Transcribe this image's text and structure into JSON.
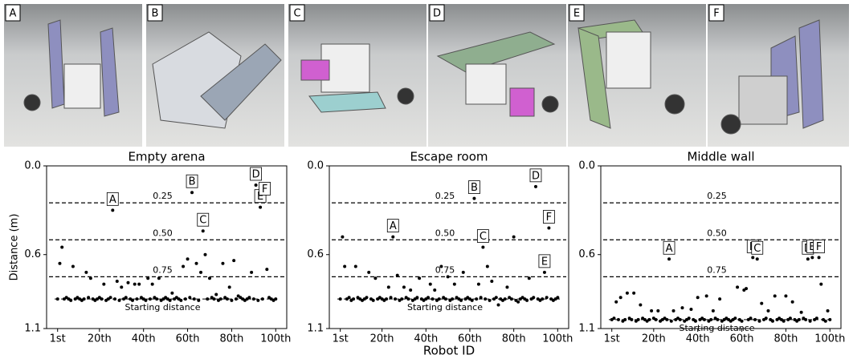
{
  "panels": [
    {
      "label": "A"
    },
    {
      "label": "B"
    },
    {
      "label": "C"
    },
    {
      "label": "D"
    },
    {
      "label": "E"
    },
    {
      "label": "F"
    }
  ],
  "chart_data": [
    {
      "type": "scatter",
      "title": "Empty arena",
      "ylabel": "Distance (m)",
      "color": "#000000",
      "x": [
        1,
        2,
        3,
        4,
        5,
        6,
        7,
        8,
        9,
        10,
        11,
        12,
        13,
        14,
        15,
        16,
        17,
        18,
        19,
        20,
        21,
        22,
        23,
        24,
        25,
        26,
        27,
        28,
        29,
        30,
        31,
        32,
        33,
        34,
        35,
        36,
        37,
        38,
        39,
        40,
        41,
        42,
        43,
        44,
        45,
        46,
        47,
        48,
        49,
        50,
        51,
        52,
        53,
        54,
        55,
        56,
        57,
        58,
        59,
        60,
        61,
        62,
        63,
        64,
        65,
        66,
        67,
        68,
        69,
        70,
        71,
        72,
        73,
        74,
        75,
        76,
        77,
        78,
        79,
        80,
        81,
        82,
        83,
        84,
        85,
        86,
        87,
        88,
        89,
        90,
        91,
        92,
        93,
        94,
        95,
        96,
        97,
        98,
        99,
        100
      ],
      "values": [
        0.9,
        0.66,
        0.55,
        0.9,
        0.89,
        0.9,
        0.91,
        0.68,
        0.9,
        0.89,
        0.9,
        0.91,
        0.9,
        0.72,
        0.89,
        0.76,
        0.9,
        0.91,
        0.9,
        0.89,
        0.9,
        0.8,
        0.91,
        0.9,
        0.89,
        0.3,
        0.9,
        0.78,
        0.91,
        0.82,
        0.9,
        0.89,
        0.79,
        0.9,
        0.91,
        0.8,
        0.9,
        0.8,
        0.89,
        0.9,
        0.91,
        0.76,
        0.9,
        0.8,
        0.89,
        0.9,
        0.76,
        0.91,
        0.9,
        0.89,
        0.9,
        0.91,
        0.86,
        0.9,
        0.89,
        0.9,
        0.91,
        0.68,
        0.9,
        0.63,
        0.89,
        0.18,
        0.9,
        0.66,
        0.91,
        0.72,
        0.44,
        0.6,
        0.9,
        0.76,
        0.89,
        0.9,
        0.87,
        0.91,
        0.9,
        0.66,
        0.89,
        0.9,
        0.82,
        0.91,
        0.64,
        0.9,
        0.88,
        0.89,
        0.9,
        0.91,
        0.9,
        0.89,
        0.72,
        0.9,
        0.13,
        0.91,
        0.28,
        0.9,
        0.23,
        0.7,
        0.89,
        0.9,
        0.91,
        0.9
      ],
      "xlim": [
        -4,
        105
      ],
      "ylim": [
        1.1,
        0
      ],
      "xticks": [
        {
          "value": 1,
          "label": "1st"
        },
        {
          "value": 20,
          "label": "20th"
        },
        {
          "value": 40,
          "label": "40th"
        },
        {
          "value": 60,
          "label": "60th"
        },
        {
          "value": 80,
          "label": "80th"
        },
        {
          "value": 100,
          "label": "100th"
        }
      ],
      "yticks": [
        {
          "value": 0,
          "label": "0.0"
        },
        0.6,
        1.1
      ],
      "hlines": [
        {
          "value": 0.25,
          "label": "0.25"
        },
        {
          "value": 0.5,
          "label": "0.50"
        },
        {
          "value": 0.75,
          "label": "0.75"
        }
      ],
      "baseline": {
        "value": 0.9,
        "label": "Starting distance"
      },
      "annotations": [
        {
          "text": "A",
          "x": 26
        },
        {
          "text": "B",
          "x": 62
        },
        {
          "text": "C",
          "x": 67
        },
        {
          "text": "D",
          "x": 91
        },
        {
          "text": "E",
          "x": 93
        },
        {
          "text": "F",
          "x": 95
        }
      ]
    },
    {
      "type": "scatter",
      "title": "Escape room",
      "xlabel": "Robot ID",
      "color": "#000000",
      "x": [
        1,
        2,
        3,
        4,
        5,
        6,
        7,
        8,
        9,
        10,
        11,
        12,
        13,
        14,
        15,
        16,
        17,
        18,
        19,
        20,
        21,
        22,
        23,
        24,
        25,
        26,
        27,
        28,
        29,
        30,
        31,
        32,
        33,
        34,
        35,
        36,
        37,
        38,
        39,
        40,
        41,
        42,
        43,
        44,
        45,
        46,
        47,
        48,
        49,
        50,
        51,
        52,
        53,
        54,
        55,
        56,
        57,
        58,
        59,
        60,
        61,
        62,
        63,
        64,
        65,
        66,
        67,
        68,
        69,
        70,
        71,
        72,
        73,
        74,
        75,
        76,
        77,
        78,
        79,
        80,
        81,
        82,
        83,
        84,
        85,
        86,
        87,
        88,
        89,
        90,
        91,
        92,
        93,
        94,
        95,
        96,
        97,
        98,
        99,
        100
      ],
      "values": [
        0.9,
        0.48,
        0.68,
        0.9,
        0.89,
        0.91,
        0.9,
        0.68,
        0.89,
        0.9,
        0.91,
        0.9,
        0.89,
        0.72,
        0.9,
        0.91,
        0.76,
        0.9,
        0.89,
        0.9,
        0.91,
        0.9,
        0.82,
        0.89,
        0.48,
        0.9,
        0.74,
        0.91,
        0.9,
        0.82,
        0.89,
        0.9,
        0.84,
        0.91,
        0.9,
        0.89,
        0.76,
        0.9,
        0.91,
        0.9,
        0.89,
        0.8,
        0.9,
        0.84,
        0.91,
        0.9,
        0.68,
        0.89,
        0.9,
        0.75,
        0.91,
        0.9,
        0.8,
        0.89,
        0.9,
        0.91,
        0.72,
        0.9,
        0.89,
        0.9,
        0.91,
        0.22,
        0.9,
        0.8,
        0.89,
        0.55,
        0.9,
        0.68,
        0.91,
        0.78,
        0.9,
        0.89,
        0.94,
        0.9,
        0.91,
        0.9,
        0.82,
        0.89,
        0.9,
        0.48,
        0.91,
        0.92,
        0.9,
        0.89,
        0.9,
        0.91,
        0.76,
        0.9,
        0.89,
        0.14,
        0.9,
        0.91,
        0.9,
        0.72,
        0.89,
        0.42,
        0.9,
        0.91,
        0.9,
        0.89
      ],
      "xlim": [
        -4,
        105
      ],
      "ylim": [
        1.1,
        0
      ],
      "xticks": [
        {
          "value": 1,
          "label": "1st"
        },
        {
          "value": 20,
          "label": "20th"
        },
        {
          "value": 40,
          "label": "40th"
        },
        {
          "value": 60,
          "label": "60th"
        },
        {
          "value": 80,
          "label": "80th"
        },
        {
          "value": 100,
          "label": "100th"
        }
      ],
      "yticks": [
        {
          "value": 0,
          "label": "0.0"
        },
        0.6,
        1.1
      ],
      "hlines": [
        {
          "value": 0.25,
          "label": "0.25"
        },
        {
          "value": 0.5,
          "label": "0.50"
        },
        {
          "value": 0.75,
          "label": "0.75"
        }
      ],
      "baseline": {
        "value": 0.9,
        "label": "Starting distance"
      },
      "annotations": [
        {
          "text": "A",
          "x": 25
        },
        {
          "text": "B",
          "x": 62
        },
        {
          "text": "C",
          "x": 66
        },
        {
          "text": "D",
          "x": 90
        },
        {
          "text": "E",
          "x": 94
        },
        {
          "text": "F",
          "x": 96
        }
      ]
    },
    {
      "type": "scatter",
      "title": "Middle wall",
      "color": "#000000",
      "x": [
        1,
        2,
        3,
        4,
        5,
        6,
        7,
        8,
        9,
        10,
        11,
        12,
        13,
        14,
        15,
        16,
        17,
        18,
        19,
        20,
        21,
        22,
        23,
        24,
        25,
        26,
        27,
        28,
        29,
        30,
        31,
        32,
        33,
        34,
        35,
        36,
        37,
        38,
        39,
        40,
        41,
        42,
        43,
        44,
        45,
        46,
        47,
        48,
        49,
        50,
        51,
        52,
        53,
        54,
        55,
        56,
        57,
        58,
        59,
        60,
        61,
        62,
        63,
        64,
        65,
        66,
        67,
        68,
        69,
        70,
        71,
        72,
        73,
        74,
        75,
        76,
        77,
        78,
        79,
        80,
        81,
        82,
        83,
        84,
        85,
        86,
        87,
        88,
        89,
        90,
        91,
        92,
        93,
        94,
        95,
        96,
        97,
        98,
        99,
        100
      ],
      "values": [
        1.04,
        1.03,
        0.92,
        1.04,
        0.89,
        1.05,
        1.04,
        0.86,
        1.03,
        1.04,
        0.86,
        1.05,
        1.04,
        0.94,
        1.03,
        1.04,
        1.05,
        1.04,
        0.98,
        1.03,
        1.04,
        0.98,
        1.05,
        1.04,
        1.03,
        1.04,
        0.63,
        1.05,
        0.98,
        1.04,
        1.03,
        1.04,
        0.96,
        1.05,
        1.04,
        1.03,
        0.97,
        1.04,
        1.05,
        0.89,
        1.04,
        1.03,
        1.04,
        0.88,
        1.05,
        1.04,
        0.98,
        1.03,
        1.04,
        0.9,
        1.05,
        1.04,
        1.03,
        1.04,
        1.05,
        1.04,
        1.03,
        0.82,
        1.04,
        1.05,
        0.84,
        0.83,
        1.04,
        1.03,
        0.62,
        1.04,
        0.63,
        1.05,
        0.93,
        1.04,
        1.03,
        0.98,
        1.04,
        1.05,
        0.88,
        1.04,
        1.03,
        1.04,
        1.05,
        0.88,
        1.04,
        1.03,
        0.92,
        1.04,
        1.05,
        1.04,
        0.99,
        1.03,
        1.04,
        0.63,
        1.05,
        0.62,
        1.04,
        1.03,
        0.62,
        0.8,
        1.04,
        1.05,
        0.98,
        1.04
      ],
      "xlim": [
        -4,
        105
      ],
      "ylim": [
        1.1,
        0
      ],
      "xticks": [
        {
          "value": 1,
          "label": "1st"
        },
        {
          "value": 20,
          "label": "20th"
        },
        {
          "value": 40,
          "label": "40th"
        },
        {
          "value": 60,
          "label": "60th"
        },
        {
          "value": 80,
          "label": "80th"
        },
        {
          "value": 100,
          "label": "100th"
        }
      ],
      "yticks": [
        {
          "value": 0,
          "label": "0.0"
        },
        0.6,
        1.1
      ],
      "hlines": [
        {
          "value": 0.25,
          "label": "0.25"
        },
        {
          "value": 0.5,
          "label": "0.50"
        },
        {
          "value": 0.75,
          "label": "0.75"
        }
      ],
      "baseline": {
        "value": 1.04,
        "label": "Starting distance"
      },
      "annotations": [
        {
          "text": "A",
          "x": 27
        },
        {
          "text": "B",
          "x": 65
        },
        {
          "text": "C",
          "x": 67
        },
        {
          "text": "D",
          "x": 90
        },
        {
          "text": "E",
          "x": 92
        },
        {
          "text": "F",
          "x": 95
        }
      ]
    }
  ]
}
